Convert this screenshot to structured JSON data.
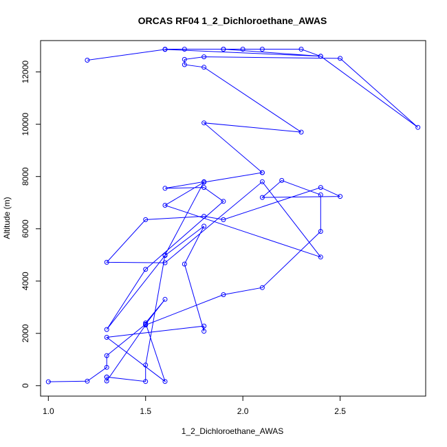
{
  "chart_data": {
    "type": "line",
    "title": "ORCAS RF04 1_2_Dichloroethane_AWAS",
    "xlabel": "1_2_Dichloroethane_AWAS",
    "ylabel": "Altitude (m)",
    "xlim": [
      0.96,
      2.94
    ],
    "ylim": [
      -400,
      13200
    ],
    "xticks": [
      1.0,
      1.5,
      2.0,
      2.5
    ],
    "xtick_labels": [
      "1.0",
      "1.5",
      "2.0",
      "2.5"
    ],
    "yticks": [
      0,
      2000,
      4000,
      6000,
      8000,
      10000,
      12000
    ],
    "ytick_labels": [
      "0",
      "2000",
      "4000",
      "6000",
      "8000",
      "10000",
      "12000"
    ],
    "grid": false,
    "legend": "none",
    "color": "#0000ff",
    "series": [
      {
        "x": [
          1.0,
          1.2,
          1.3,
          1.3,
          1.5,
          1.6,
          1.5,
          1.6,
          1.3,
          1.8,
          1.8,
          1.7,
          1.8,
          1.6,
          1.3,
          1.5,
          1.9,
          1.8,
          1.6,
          1.8,
          1.6,
          1.5,
          1.5,
          1.3,
          1.3,
          1.3,
          1.5,
          1.9,
          2.1,
          2.4,
          2.4,
          2.2,
          2.1,
          2.5,
          2.4,
          1.9,
          1.8,
          1.5,
          1.3,
          1.6,
          2.1,
          2.4,
          1.6,
          1.8,
          2.1,
          2.1,
          1.8,
          2.3,
          1.8,
          1.7,
          1.7,
          1.8,
          2.5,
          2.9,
          2.4,
          1.9,
          1.6,
          1.7,
          1.9,
          2.0,
          2.1,
          2.3,
          2.4,
          1.6,
          1.2
        ],
        "y": [
          150,
          170,
          700,
          1150,
          2350,
          3300,
          2400,
          160,
          1850,
          2280,
          2080,
          4650,
          6100,
          4980,
          2150,
          4450,
          7050,
          7580,
          7550,
          7800,
          5000,
          790,
          160,
          330,
          330,
          180,
          2320,
          3480,
          3750,
          5900,
          7300,
          7850,
          7200,
          7240,
          7580,
          6350,
          6480,
          6350,
          4720,
          4700,
          7800,
          4920,
          6900,
          7780,
          8150,
          8150,
          10050,
          9700,
          12180,
          12280,
          12480,
          12580,
          12520,
          9880,
          12600,
          12870,
          12870,
          12870,
          12870,
          12870,
          12870,
          12870,
          12600,
          12860,
          12450
        ]
      }
    ]
  }
}
